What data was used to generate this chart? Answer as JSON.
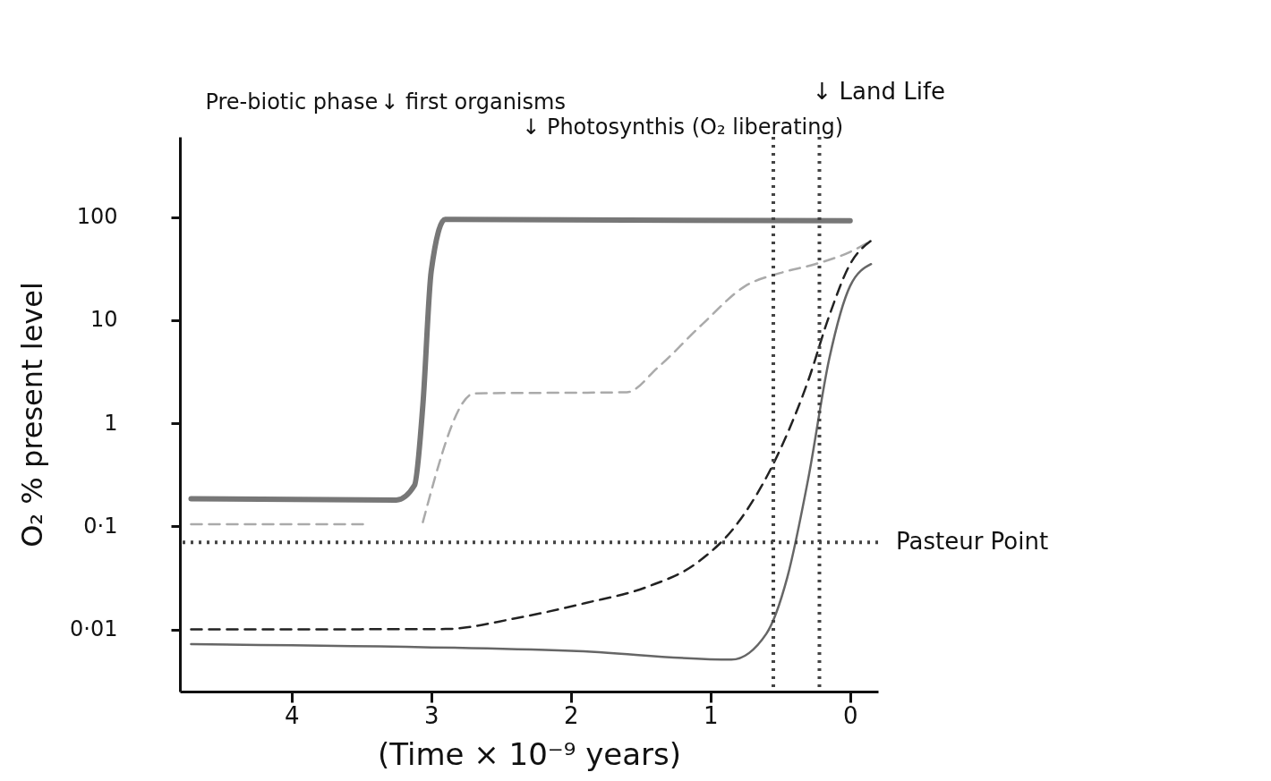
{
  "chart_data": {
    "type": "line",
    "xlabel": "(Time × 10⁻⁹ years)",
    "ylabel": "O₂ % present level",
    "log": "y",
    "xlim": [
      4.8,
      -0.2
    ],
    "xticks": [
      4,
      3,
      2,
      1,
      0
    ],
    "ylim": [
      0.0025,
      600
    ],
    "yticks": [
      100,
      10,
      1,
      {
        "value": 0.1,
        "label": "0·1"
      },
      {
        "value": 0.01,
        "label": "0·01"
      }
    ],
    "grid": false,
    "series": [
      {
        "color": "#777777",
        "line_style": "solid",
        "x": [
          4.72,
          3.25,
          3.12,
          3.06,
          3.0,
          2.9,
          0
        ],
        "values": [
          0.185,
          0.18,
          0.25,
          1.5,
          30,
          95,
          92
        ]
      },
      {
        "color": "#aaaaaa",
        "line_style": "dashed",
        "x": [
          4.72,
          3.45,
          3.3,
          3.06,
          2.69,
          1.6,
          1.375,
          1.06,
          0.75,
          0.5,
          0.25,
          0,
          -0.15
        ],
        "values": [
          0.105,
          0.105,
          null,
          0.11,
          1.95,
          2.0,
          3.5,
          9.1,
          21.5,
          28.7,
          35,
          46,
          59
        ]
      },
      {
        "color": "#222222",
        "line_style": "dashed",
        "x": [
          4.72,
          2.9,
          2.4,
          1.9,
          1.45,
          1.1,
          0.8,
          0.5,
          0.3,
          0.15,
          0,
          -0.15
        ],
        "values": [
          0.01,
          0.0101,
          0.0128,
          0.018,
          0.026,
          0.044,
          0.11,
          0.56,
          2.6,
          11,
          35,
          59
        ]
      },
      {
        "color": "#666666",
        "line_style": "solid",
        "x": [
          4.72,
          2.0,
          0.85,
          0.6,
          0.45,
          0.3,
          0.15,
          0,
          -0.15
        ],
        "values": [
          0.0072,
          0.0062,
          0.0051,
          0.0091,
          0.032,
          0.29,
          4.2,
          21.5,
          35
        ]
      }
    ],
    "ref_lines": [
      {
        "axis": "y",
        "value": 0.07,
        "label": "Pasteur Point",
        "line_style": "dotted",
        "color": "#444444"
      },
      {
        "axis": "x",
        "value": 0.55,
        "line_style": "dotted",
        "color": "#444444"
      },
      {
        "axis": "x",
        "value": 0.22,
        "label": "↓ Land Life",
        "line_style": "dotted",
        "color": "#444444"
      }
    ],
    "annotations": [
      "Pre-biotic phase",
      "↓ first organisms",
      "↓ Photosynthis (O₂ liberating)"
    ]
  }
}
